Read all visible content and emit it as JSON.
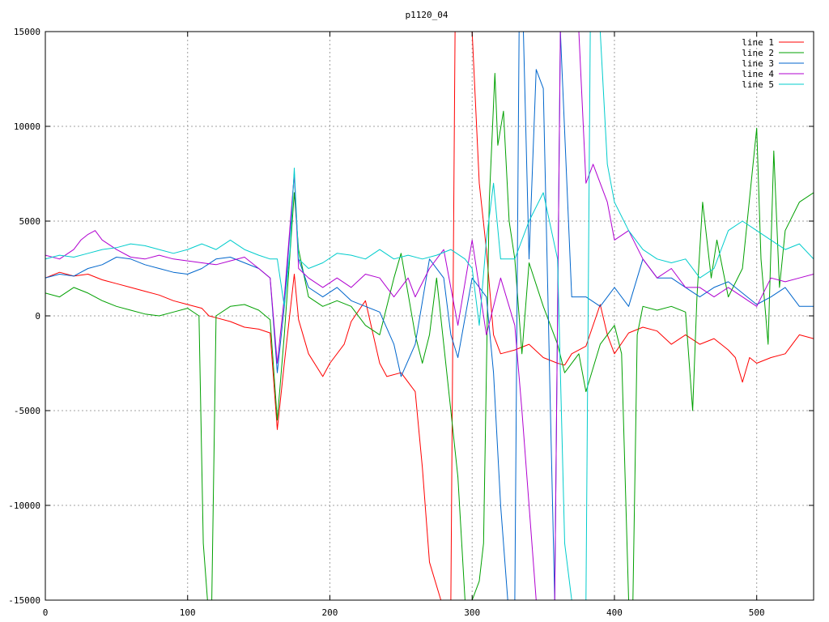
{
  "chart_data": {
    "type": "line",
    "title": "p1120_04",
    "xlabel": "",
    "ylabel": "",
    "xlim": [
      0,
      540
    ],
    "ylim": [
      -15000,
      15000
    ],
    "xticks": [
      0,
      100,
      200,
      300,
      400,
      500
    ],
    "yticks": [
      -15000,
      -10000,
      -5000,
      0,
      5000,
      10000,
      15000
    ],
    "grid": true,
    "legend_position": "top-right",
    "series": [
      {
        "name": "line 1",
        "color": "#ff0000",
        "x": [
          0,
          10,
          20,
          30,
          40,
          50,
          60,
          70,
          80,
          90,
          100,
          110,
          115,
          120,
          130,
          140,
          150,
          158,
          163,
          168,
          175,
          178,
          185,
          195,
          200,
          210,
          215,
          225,
          235,
          240,
          250,
          260,
          265,
          270,
          278,
          285,
          288,
          291,
          296,
          300,
          305,
          310,
          315,
          320,
          330,
          340,
          350,
          360,
          365,
          370,
          380,
          390,
          395,
          400,
          410,
          420,
          430,
          440,
          450,
          460,
          470,
          480,
          485,
          490,
          495,
          500,
          510,
          520,
          530,
          540
        ],
        "y": [
          2000,
          2300,
          2100,
          2200,
          1900,
          1700,
          1500,
          1300,
          1100,
          800,
          600,
          400,
          0,
          -100,
          -300,
          -600,
          -700,
          -900,
          -6000,
          -2500,
          2200,
          -200,
          -2000,
          -3200,
          -2500,
          -1500,
          -300,
          800,
          -2500,
          -3200,
          -3000,
          -4000,
          -8000,
          -13000,
          -15000,
          -15000,
          15000,
          15000,
          15000,
          15000,
          7000,
          3500,
          -1000,
          -2000,
          -1800,
          -1500,
          -2200,
          -2500,
          -2600,
          -2000,
          -1600,
          600,
          -1000,
          -2000,
          -900,
          -600,
          -800,
          -1500,
          -1000,
          -1500,
          -1200,
          -1800,
          -2200,
          -3500,
          -2200,
          -2500,
          -2200,
          -2000,
          -1000,
          -1200
        ]
      },
      {
        "name": "line 2",
        "color": "#00a000",
        "x": [
          0,
          10,
          20,
          30,
          40,
          50,
          60,
          70,
          80,
          90,
          100,
          108,
          111,
          114,
          117,
          120,
          130,
          140,
          150,
          158,
          163,
          168,
          175,
          178,
          185,
          195,
          205,
          215,
          225,
          235,
          245,
          250,
          260,
          265,
          270,
          275,
          280,
          285,
          290,
          295,
          300,
          305,
          308,
          312,
          316,
          318,
          322,
          326,
          330,
          335,
          340,
          350,
          360,
          365,
          375,
          380,
          390,
          400,
          405,
          410,
          413,
          416,
          420,
          430,
          440,
          450,
          455,
          458,
          462,
          468,
          472,
          480,
          490,
          500,
          503,
          508,
          512,
          516,
          520,
          530,
          540
        ],
        "y": [
          1200,
          1000,
          1500,
          1200,
          800,
          500,
          300,
          100,
          0,
          200,
          400,
          0,
          -12000,
          -15000,
          -15000,
          0,
          500,
          600,
          300,
          -200,
          -5500,
          -1000,
          6500,
          3500,
          1000,
          500,
          800,
          500,
          -500,
          -1000,
          2000,
          3300,
          -1000,
          -2500,
          -1000,
          2000,
          -1500,
          -5000,
          -8500,
          -15000,
          -15000,
          -14000,
          -12000,
          6000,
          12800,
          9000,
          10800,
          5000,
          3000,
          -2000,
          2800,
          500,
          -1500,
          -3000,
          -2000,
          -4000,
          -1500,
          -500,
          -2000,
          -15000,
          -15000,
          -1000,
          500,
          300,
          500,
          200,
          -5000,
          1000,
          6000,
          2000,
          4000,
          1000,
          2500,
          9900,
          3000,
          -1500,
          8700,
          1500,
          4500,
          6000,
          6500
        ]
      },
      {
        "name": "line 3",
        "color": "#0066cc",
        "x": [
          0,
          10,
          20,
          30,
          40,
          50,
          60,
          70,
          80,
          90,
          100,
          110,
          120,
          130,
          140,
          150,
          158,
          163,
          168,
          175,
          178,
          185,
          195,
          205,
          215,
          225,
          235,
          245,
          250,
          260,
          270,
          280,
          285,
          290,
          300,
          310,
          315,
          320,
          325,
          330,
          333,
          336,
          340,
          345,
          350,
          355,
          358,
          362,
          370,
          380,
          390,
          400,
          410,
          420,
          430,
          440,
          450,
          460,
          470,
          480,
          490,
          500,
          510,
          520,
          530,
          540
        ],
        "y": [
          2000,
          2200,
          2100,
          2500,
          2700,
          3100,
          3000,
          2700,
          2500,
          2300,
          2200,
          2500,
          3000,
          3100,
          2800,
          2500,
          2000,
          -3000,
          500,
          7500,
          3000,
          1500,
          1000,
          1500,
          800,
          500,
          200,
          -1500,
          -3200,
          -1500,
          3000,
          2000,
          -1000,
          -2200,
          2000,
          1000,
          -3000,
          -10000,
          -15000,
          -15000,
          15000,
          15000,
          3000,
          13000,
          12000,
          -5000,
          -15000,
          15000,
          1000,
          1000,
          500,
          1500,
          500,
          3000,
          2000,
          2000,
          1500,
          1000,
          1500,
          1800,
          1200,
          600,
          1000,
          1500,
          500,
          500
        ]
      },
      {
        "name": "line 4",
        "color": "#b000d0",
        "x": [
          0,
          10,
          20,
          25,
          30,
          35,
          40,
          50,
          60,
          70,
          80,
          90,
          100,
          110,
          120,
          130,
          140,
          150,
          158,
          163,
          168,
          175,
          178,
          185,
          195,
          205,
          215,
          225,
          235,
          245,
          255,
          260,
          270,
          280,
          290,
          300,
          310,
          320,
          330,
          335,
          340,
          345,
          350,
          355,
          358,
          362,
          370,
          375,
          380,
          385,
          390,
          395,
          400,
          410,
          420,
          430,
          440,
          450,
          460,
          470,
          480,
          490,
          500,
          510,
          520,
          530,
          540
        ],
        "y": [
          3200,
          3000,
          3500,
          4000,
          4300,
          4500,
          4000,
          3500,
          3100,
          3000,
          3200,
          3000,
          2900,
          2800,
          2700,
          2900,
          3100,
          2500,
          2000,
          -2500,
          1000,
          7500,
          2500,
          2000,
          1500,
          2000,
          1500,
          2200,
          2000,
          1000,
          2000,
          1000,
          2500,
          3500,
          -500,
          4000,
          -1000,
          2000,
          -500,
          -5000,
          -10000,
          -15000,
          -15000,
          -15000,
          -15000,
          15000,
          15000,
          15000,
          7000,
          8000,
          7000,
          6000,
          4000,
          4500,
          3000,
          2000,
          2500,
          1500,
          1500,
          1000,
          1500,
          1000,
          500,
          2000,
          1800,
          2000,
          2200
        ]
      },
      {
        "name": "line 5",
        "color": "#00cccc",
        "x": [
          0,
          10,
          20,
          30,
          40,
          50,
          60,
          70,
          80,
          90,
          100,
          110,
          120,
          130,
          140,
          150,
          158,
          163,
          168,
          172,
          175,
          178,
          185,
          195,
          205,
          215,
          225,
          235,
          245,
          255,
          265,
          275,
          285,
          295,
          300,
          305,
          310,
          315,
          320,
          330,
          340,
          350,
          360,
          365,
          370,
          375,
          380,
          383,
          386,
          390,
          395,
          400,
          410,
          420,
          430,
          440,
          450,
          460,
          470,
          480,
          490,
          500,
          510,
          520,
          530,
          540
        ],
        "y": [
          3000,
          3200,
          3100,
          3300,
          3500,
          3600,
          3800,
          3700,
          3500,
          3300,
          3500,
          3800,
          3500,
          4000,
          3500,
          3200,
          3000,
          3000,
          500,
          3500,
          7800,
          3000,
          2500,
          2800,
          3300,
          3200,
          3000,
          3500,
          3000,
          3200,
          3000,
          3200,
          3500,
          3000,
          2500,
          -500,
          4000,
          7000,
          3000,
          3000,
          5000,
          6500,
          3000,
          -12000,
          -15000,
          -15000,
          -15000,
          15000,
          15000,
          15000,
          8000,
          6000,
          4500,
          3500,
          3000,
          2800,
          3000,
          2000,
          2500,
          4500,
          5000,
          4500,
          4000,
          3500,
          3800,
          3000
        ]
      }
    ]
  }
}
